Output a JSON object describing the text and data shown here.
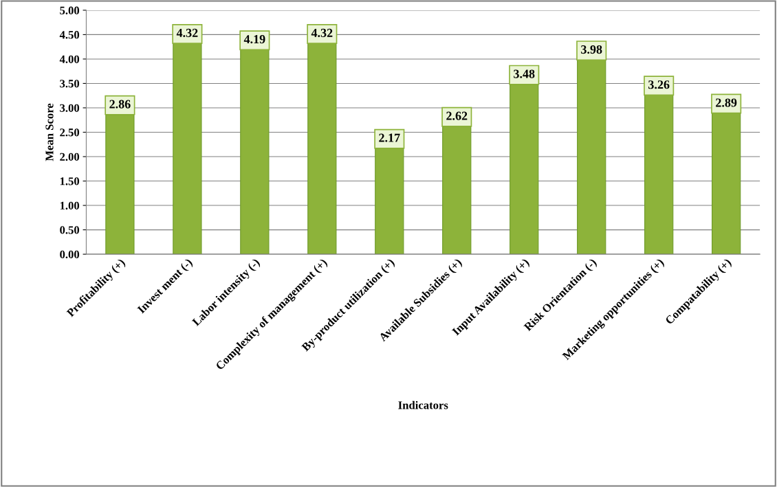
{
  "chart_data": {
    "type": "bar",
    "xlabel": "Indicators",
    "ylabel": "Mean Score",
    "categories": [
      "Profitability (+)",
      "Invest ment (-)",
      "Labor intensity (-)",
      "Complexity of management (+)",
      "By-product utilization (+)",
      "Available Subsidies (+)",
      "Input Availability (+)",
      "Risk Orientation (-)",
      "Marketing opportunities (+)",
      "Compatability (+)"
    ],
    "values": [
      2.86,
      4.32,
      4.19,
      4.32,
      2.17,
      2.62,
      3.48,
      3.98,
      3.26,
      2.89
    ],
    "color": "#8db33a",
    "ylim": [
      0,
      5
    ],
    "yticks": [
      {
        "value": 0,
        "label": "0.00"
      },
      {
        "value": 0.5,
        "label": "0.50"
      },
      {
        "value": 1,
        "label": "1.00"
      },
      {
        "value": 1.5,
        "label": "1.50"
      },
      {
        "value": 2,
        "label": "2.00"
      },
      {
        "value": 2.5,
        "label": "2.50"
      },
      {
        "value": 3,
        "label": "3.00"
      },
      {
        "value": 3.5,
        "label": "3.50"
      },
      {
        "value": 4,
        "label": "4.00"
      },
      {
        "value": 4.5,
        "label": "4.50"
      },
      {
        "value": 5,
        "label": "5.00"
      }
    ],
    "grid": "y",
    "data_labels": true
  }
}
